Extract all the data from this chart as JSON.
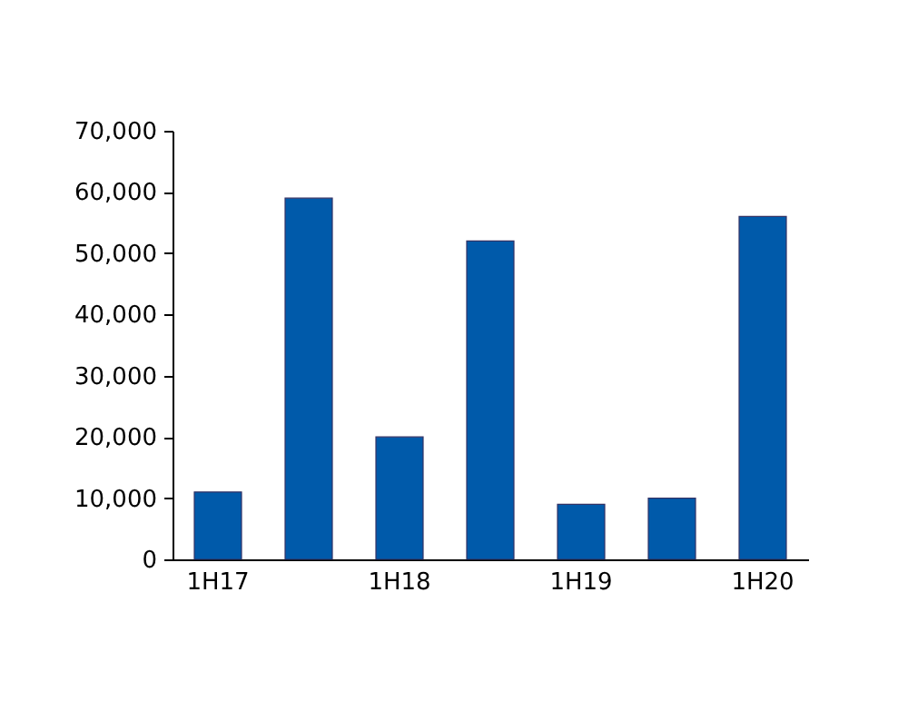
{
  "chart_data": {
    "type": "bar",
    "categories": [
      "1H17",
      null,
      "1H18",
      null,
      "1H19",
      null,
      "1H20"
    ],
    "values": [
      11000,
      59000,
      20000,
      52000,
      9000,
      10000,
      56000
    ],
    "color": "#005aaa",
    "ylim": [
      0,
      70000
    ],
    "yticks": [
      0,
      {
        "value": 10000,
        "label": "10,000"
      },
      {
        "value": 20000,
        "label": "20,000"
      },
      {
        "value": 30000,
        "label": "30,000"
      },
      {
        "value": 40000,
        "label": "40,000"
      },
      {
        "value": 50000,
        "label": "50,000"
      },
      {
        "value": 60000,
        "label": "60,000"
      },
      {
        "value": 70000,
        "label": "70,000"
      }
    ],
    "grid": false
  }
}
